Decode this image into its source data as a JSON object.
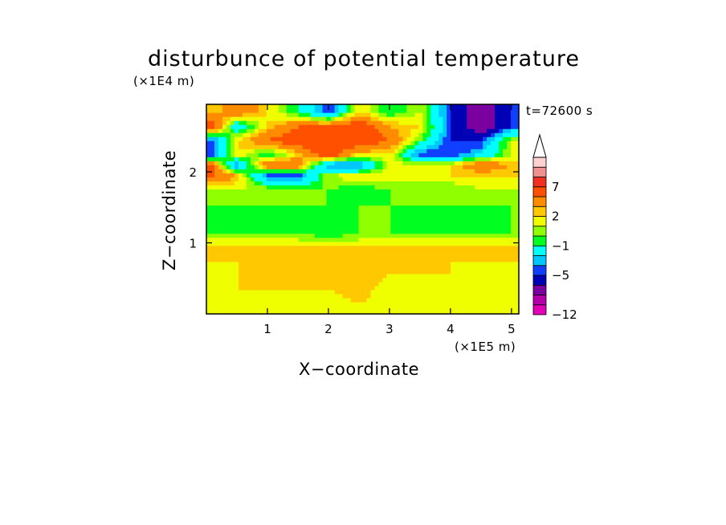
{
  "chart_data": {
    "type": "heatmap",
    "title": "disturbunce of potential temperature",
    "xlabel": "X−coordinate",
    "ylabel": "Z−coordinate",
    "x_unit": "(×1E5 m)",
    "y_unit": "(×1E4 m)",
    "time_label": "t=72600 s",
    "xlim": [
      0,
      5.12
    ],
    "ylim": [
      0,
      2.95
    ],
    "x_ticks": [
      1,
      2,
      3,
      4,
      5
    ],
    "y_ticks": [
      1,
      2
    ],
    "colorbar": {
      "levels": [
        -12,
        -11,
        -9,
        -7,
        -5,
        -4,
        -3,
        -1,
        0,
        1,
        2,
        3,
        5,
        7,
        9,
        11
      ],
      "labels": [
        "−12",
        "−5",
        "−1",
        "2",
        "7"
      ],
      "label_levels": [
        -12,
        -5,
        -1,
        2,
        7
      ],
      "colors": [
        "#e000b8",
        "#b400a8",
        "#7a00a0",
        "#0000b4",
        "#1040ff",
        "#00c8ff",
        "#00ffff",
        "#00ff20",
        "#90ff00",
        "#f0ff00",
        "#ffc800",
        "#ff8c00",
        "#ff5000",
        "#f03020",
        "#f09090",
        "#ffd0d0"
      ],
      "extend": "max"
    },
    "field_description": {
      "rows_z": [
        2.85,
        2.65,
        2.45,
        2.25,
        2.1,
        1.95,
        1.75,
        1.55,
        1.35,
        1.15,
        0.95,
        0.75,
        0.55,
        0.35,
        0.15
      ],
      "x": [
        0.1,
        0.5,
        1.0,
        1.5,
        2.0,
        2.5,
        3.0,
        3.5,
        4.0,
        4.5,
        5.0
      ],
      "values": [
        [
          2,
          5,
          2,
          -1,
          -5,
          2,
          -1,
          1,
          -5,
          -9,
          -5
        ],
        [
          7,
          -3,
          2,
          5,
          5,
          7,
          3,
          2,
          -5,
          -9,
          -5
        ],
        [
          -5,
          2,
          5,
          7,
          7,
          7,
          5,
          0,
          -5,
          -5,
          1
        ],
        [
          -5,
          2,
          -1,
          2,
          7,
          2,
          2,
          -5,
          -5,
          -3,
          1
        ],
        [
          5,
          -5,
          5,
          5,
          -5,
          -5,
          1,
          2,
          2,
          5,
          3
        ],
        [
          5,
          3,
          -5,
          -5,
          1,
          2,
          2,
          1,
          2,
          2,
          2
        ],
        [
          1,
          1,
          1,
          0,
          0,
          -1,
          0,
          1,
          0,
          1,
          1
        ],
        [
          0,
          0,
          0,
          0,
          0,
          0,
          0,
          0,
          0,
          0,
          0
        ],
        [
          -1,
          -1,
          0,
          -1,
          -1,
          0,
          0,
          -1,
          -1,
          -1,
          0
        ],
        [
          0,
          0,
          0,
          0,
          -1,
          0,
          0,
          0,
          0,
          0,
          0
        ],
        [
          2,
          2,
          2,
          2,
          2,
          2,
          2,
          2,
          2,
          2,
          2
        ],
        [
          2,
          2,
          3,
          2,
          2,
          3,
          2,
          2,
          2,
          2,
          2
        ],
        [
          1,
          2,
          2,
          3,
          2,
          3,
          2,
          2,
          2,
          1,
          1
        ],
        [
          1,
          2,
          2,
          2,
          2,
          3,
          1,
          2,
          1,
          1,
          1
        ],
        [
          1,
          1,
          1,
          1,
          1,
          2,
          1,
          1,
          1,
          1,
          1
        ]
      ]
    }
  }
}
